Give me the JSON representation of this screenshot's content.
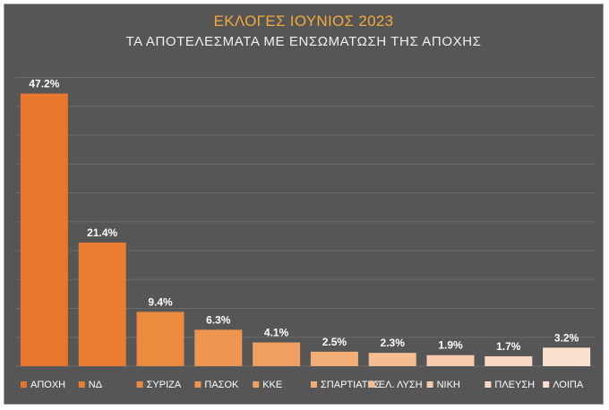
{
  "chart_data": {
    "type": "bar",
    "title": "ΕΚΛΟΓΕΣ ΙΟΥΝΙΟΣ 2023",
    "subtitle": "ΤΑ ΑΠΟΤΕΛΕΣΜΑΤΑ ΜΕ ΕΝΣΩΜΑΤΩΣΗ ΤΗΣ ΑΠΟΧΗΣ",
    "categories": [
      "ΑΠΟΧΗ",
      "ΝΔ",
      "ΣΥΡΙΖΑ",
      "ΠΑΣΟΚ",
      "ΚΚΕ",
      "ΣΠΑΡΤΙΑΤΕΣ",
      "ΕΛ. ΛΥΣΗ",
      "ΝΙΚΗ",
      "ΠΛΕΥΣΗ",
      "ΛΟΙΠΑ"
    ],
    "values": [
      47.2,
      21.4,
      9.4,
      6.3,
      4.1,
      2.5,
      2.3,
      1.9,
      1.7,
      3.2
    ],
    "value_labels": [
      "47.2%",
      "21.4%",
      "9.4%",
      "6.3%",
      "4.1%",
      "2.5%",
      "2.3%",
      "1.9%",
      "1.7%",
      "3.2%"
    ],
    "colors": [
      "#e8772e",
      "#ea7f34",
      "#ec8a3e",
      "#ee9550",
      "#f0a062",
      "#f3ae78",
      "#f5bd92",
      "#f8ccac",
      "#fad9c4",
      "#fbe2d0"
    ],
    "ylim": [
      0,
      50
    ],
    "grid": true,
    "legend": "bottom",
    "background": "#565656"
  }
}
